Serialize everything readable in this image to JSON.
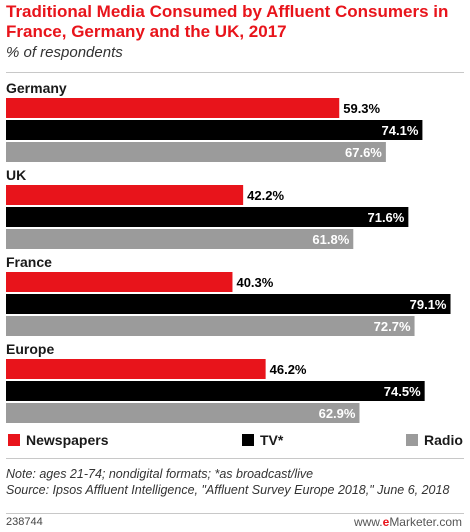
{
  "title": "Traditional Media Consumed by Affluent Consumers in France, Germany and the UK, 2017",
  "subtitle": "% of respondents",
  "colors": {
    "newspapers": "#e8141b",
    "tv": "#000000",
    "radio": "#9b9b9b",
    "title": "#e8141b"
  },
  "chart_data": {
    "type": "bar",
    "orientation": "horizontal",
    "categories": [
      "Germany",
      "UK",
      "France",
      "Europe"
    ],
    "series": [
      {
        "name": "Newspapers",
        "values": [
          59.3,
          42.2,
          40.3,
          46.2
        ],
        "labels": [
          "59.3%",
          "42.2%",
          "40.3%",
          "46.2%"
        ]
      },
      {
        "name": "TV*",
        "values": [
          74.1,
          71.6,
          79.1,
          74.5
        ],
        "labels": [
          "74.1%",
          "71.6%",
          "79.1%",
          "74.5%"
        ]
      },
      {
        "name": "Radio",
        "values": [
          67.6,
          61.8,
          72.7,
          62.9
        ],
        "labels": [
          "67.6%",
          "61.8%",
          "72.7%",
          "62.9%"
        ]
      }
    ],
    "xlim": [
      0,
      81.5
    ],
    "grid": false,
    "legend": "bottom"
  },
  "note": "Note: ages 21-74; nondigital formats; *as broadcast/live",
  "source": "Source: Ipsos Affluent Intelligence, \"Affluent Survey Europe 2018,\" June 6, 2018",
  "chart_id": "238744",
  "brand": {
    "prefix": "www.",
    "e": "e",
    "rest": "Marketer.com"
  }
}
